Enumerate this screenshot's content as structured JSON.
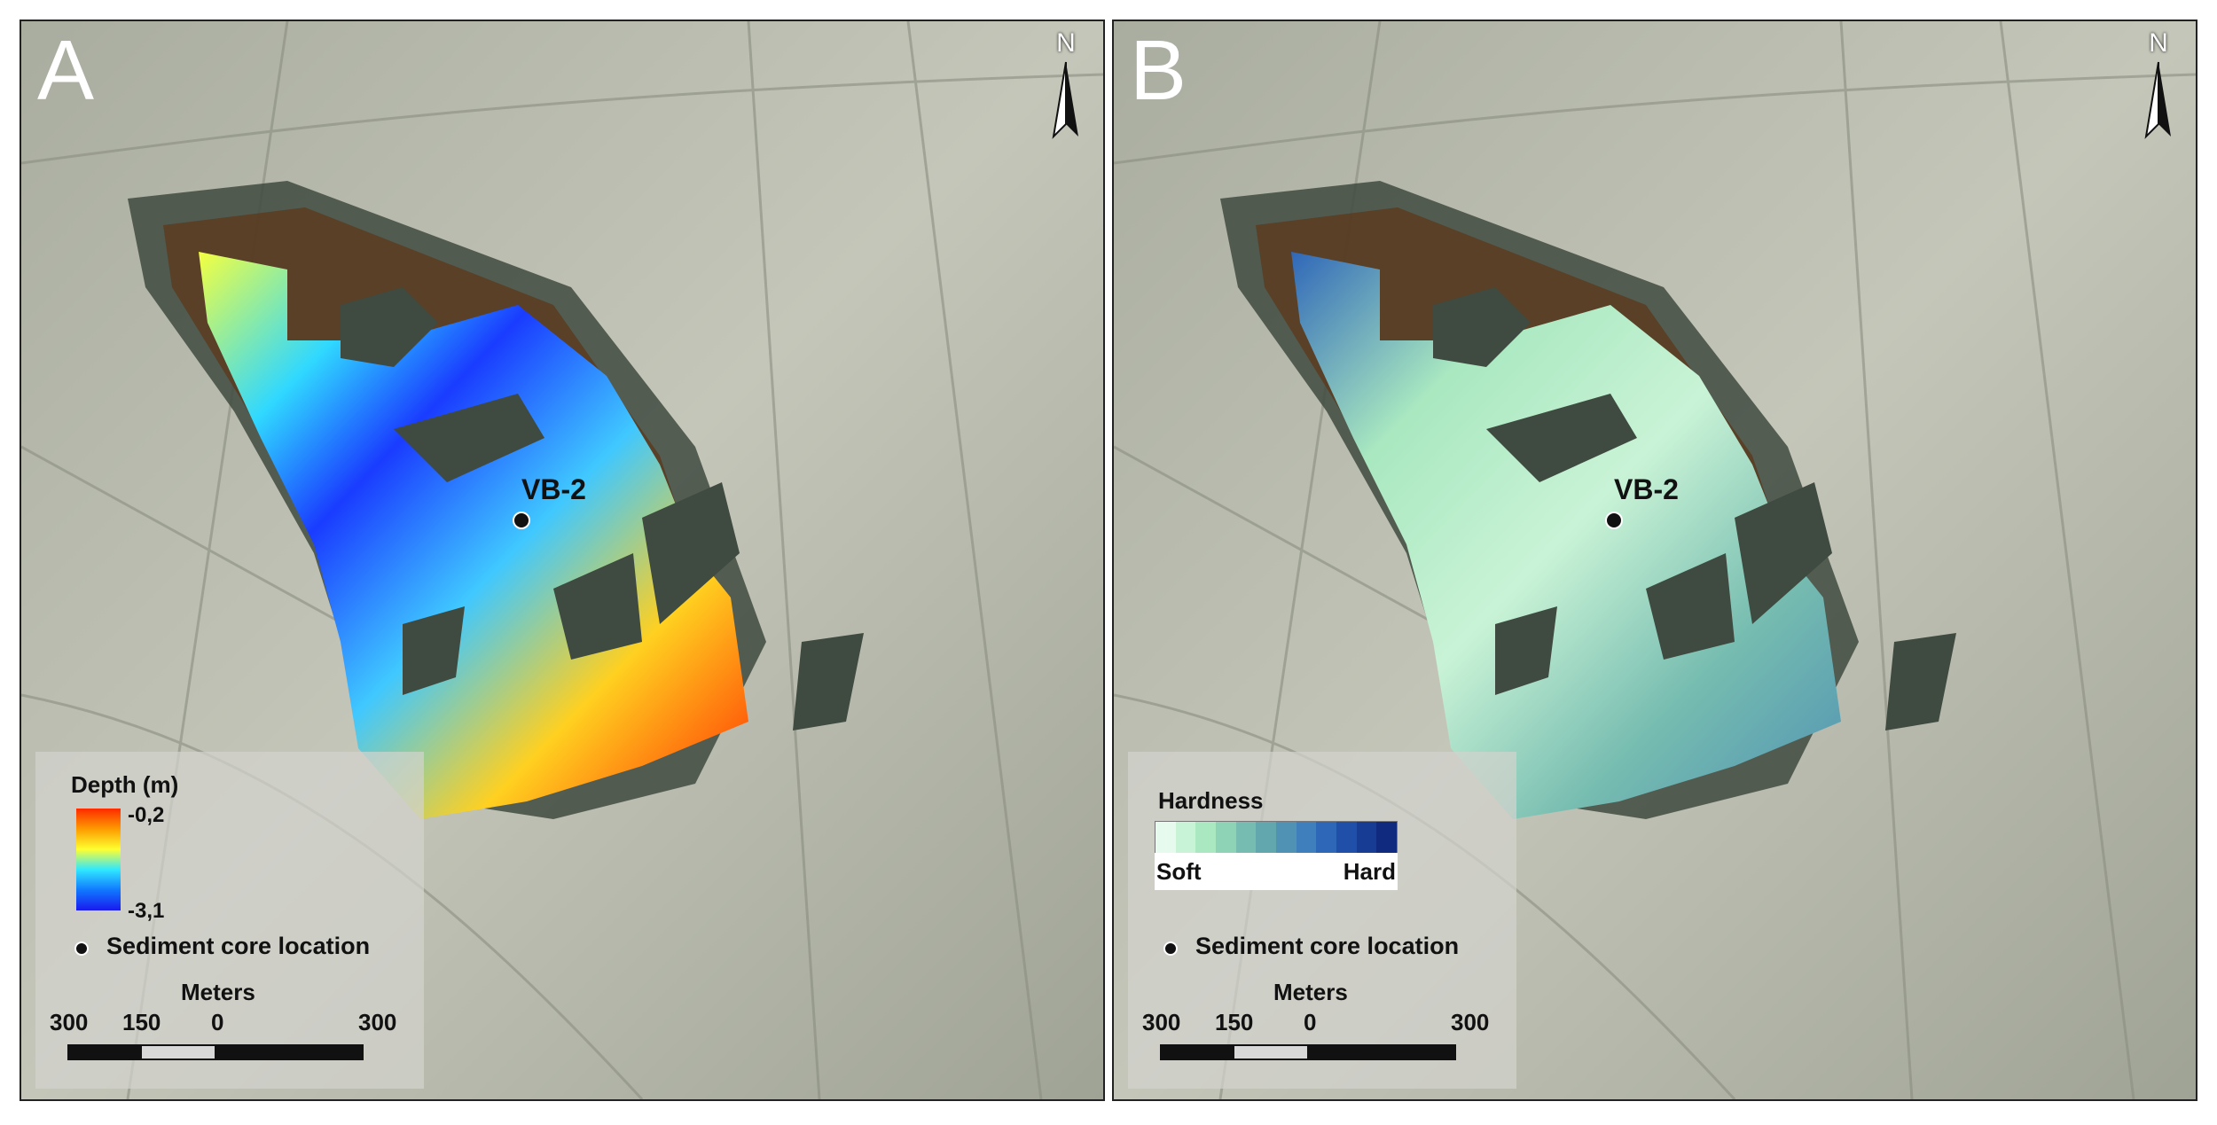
{
  "panels": [
    {
      "letter": "A",
      "north": "N",
      "site": "VB-2",
      "legend": {
        "title": "Depth (m)",
        "max_label": "-0,2",
        "min_label": "-3,1",
        "core": "Sediment core location",
        "scale_title": "Meters",
        "scale_ticks": [
          "300",
          "150",
          "0",
          "300"
        ]
      }
    },
    {
      "letter": "B",
      "north": "N",
      "site": "VB-2",
      "legend": {
        "title": "Hardness",
        "soft": "Soft",
        "hard": "Hard",
        "core": "Sediment core location",
        "scale_title": "Meters",
        "scale_ticks": [
          "300",
          "150",
          "0",
          "300"
        ]
      }
    }
  ],
  "colors": {
    "depth_ramp": [
      "#ff2a00",
      "#ff9a00",
      "#ffff30",
      "#30e8ff",
      "#1078ff",
      "#1a1aee"
    ],
    "hardness_ramp": [
      "#e6fbee",
      "#c9f3d6",
      "#a9e8c0",
      "#8fd3b6",
      "#76bcb0",
      "#62a6ae",
      "#5092b3",
      "#3f7fbb",
      "#2f67b8",
      "#1f4fa8",
      "#173c93",
      "#0f2a7e"
    ],
    "water": "#5a3d22",
    "vegetation": "#3f4a40",
    "terrain": "#b9bcae"
  }
}
